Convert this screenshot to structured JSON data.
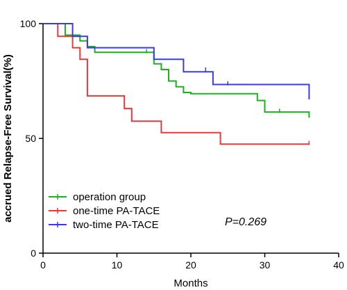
{
  "chart_data": {
    "type": "line",
    "subtype": "kaplan-meier step",
    "title": "",
    "xlabel": "Months",
    "ylabel": "accrued Relapse-Free Survival(%)",
    "xlim": [
      0,
      40
    ],
    "ylim": [
      0,
      100
    ],
    "xticks": [
      0,
      10,
      20,
      30,
      40
    ],
    "yticks": [
      0,
      50,
      100
    ],
    "grid": false,
    "legend_position": "bottom-left",
    "annotation": "P=0.269",
    "series": [
      {
        "name": "operation group",
        "color": "#1db21d",
        "steps": [
          [
            0,
            100
          ],
          [
            3,
            100
          ],
          [
            3,
            95
          ],
          [
            5,
            95
          ],
          [
            5,
            92.5
          ],
          [
            6,
            92.5
          ],
          [
            6,
            90
          ],
          [
            7,
            90
          ],
          [
            7,
            87.5
          ],
          [
            15,
            87.5
          ],
          [
            15,
            82.5
          ],
          [
            16,
            82.5
          ],
          [
            16,
            80
          ],
          [
            17,
            80
          ],
          [
            17,
            75
          ],
          [
            18,
            75
          ],
          [
            18,
            72.5
          ],
          [
            19,
            72.5
          ],
          [
            19,
            70
          ],
          [
            20,
            70
          ],
          [
            20,
            69.5
          ],
          [
            29,
            69.5
          ],
          [
            29,
            66.5
          ],
          [
            30,
            66.5
          ],
          [
            30,
            61.5
          ],
          [
            36,
            61.5
          ],
          [
            36,
            59
          ]
        ],
        "censored": [
          [
            14,
            88
          ],
          [
            32,
            62
          ]
        ]
      },
      {
        "name": "one-time PA-TACE",
        "color": "#e83838",
        "steps": [
          [
            0,
            100
          ],
          [
            2,
            100
          ],
          [
            2,
            94.5
          ],
          [
            4,
            94.5
          ],
          [
            4,
            89.5
          ],
          [
            5,
            89.5
          ],
          [
            5,
            84.5
          ],
          [
            6,
            84.5
          ],
          [
            6,
            68.5
          ],
          [
            11,
            68.5
          ],
          [
            11,
            63
          ],
          [
            12,
            63
          ],
          [
            12,
            57.5
          ],
          [
            16,
            57.5
          ],
          [
            16,
            52.5
          ],
          [
            24,
            52.5
          ],
          [
            24,
            47.5
          ],
          [
            36,
            47.5
          ]
        ],
        "censored": [
          [
            36,
            48
          ]
        ]
      },
      {
        "name": "two-time PA-TACE",
        "color": "#3a3ae8",
        "steps": [
          [
            0,
            100
          ],
          [
            4,
            100
          ],
          [
            4,
            94.5
          ],
          [
            6,
            94.5
          ],
          [
            6,
            89.5
          ],
          [
            15,
            89.5
          ],
          [
            15,
            84.5
          ],
          [
            19,
            84.5
          ],
          [
            19,
            79
          ],
          [
            23,
            79
          ],
          [
            23,
            73.5
          ],
          [
            36,
            73.5
          ],
          [
            36,
            67
          ]
        ],
        "censored": [
          [
            22,
            80
          ],
          [
            25,
            74
          ]
        ]
      }
    ]
  }
}
